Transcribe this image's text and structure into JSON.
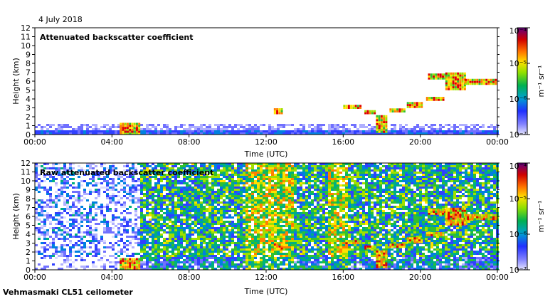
{
  "date": "4 July 2018",
  "footer": "Vehmasmaki CL51 ceilometer",
  "colorbar": {
    "unit": "m⁻¹ sr⁻¹",
    "ticks": [
      "10⁻⁴",
      "10⁻⁵",
      "10⁻⁶",
      "10⁻⁷"
    ],
    "log_values": [
      -4,
      -5,
      -6,
      -7
    ],
    "colors": [
      "#6a0080",
      "#c80000",
      "#ff6a00",
      "#ffd400",
      "#8adf00",
      "#00b050",
      "#00a0c8",
      "#1e32ff",
      "#7070ff",
      "#d8d8ff"
    ]
  },
  "chart_data": [
    {
      "type": "heatmap",
      "title": "Attenuated backscatter coefficient",
      "xlabel": "Time (UTC)",
      "ylabel": "Height (km)",
      "xticks": [
        "00:00",
        "04:00",
        "08:00",
        "12:00",
        "16:00",
        "20:00",
        "00:00"
      ],
      "xlim": [
        0,
        24
      ],
      "ylim": [
        0,
        12
      ],
      "yticks": [
        0,
        1,
        2,
        3,
        4,
        5,
        6,
        7,
        8,
        9,
        10,
        11,
        12
      ]
    },
    {
      "type": "heatmap",
      "title": "Raw attenuated backscatter coefficient",
      "xlabel": "Time (UTC)",
      "ylabel": "Height (km)",
      "xticks": [
        "00:00",
        "04:00",
        "08:00",
        "12:00",
        "16:00",
        "20:00",
        "00:00"
      ],
      "xlim": [
        0,
        24
      ],
      "ylim": [
        0,
        12
      ],
      "yticks": [
        0,
        1,
        2,
        3,
        4,
        5,
        6,
        7,
        8,
        9,
        10,
        11,
        12
      ]
    }
  ]
}
